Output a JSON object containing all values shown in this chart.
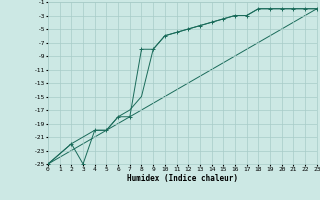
{
  "xlabel": "Humidex (Indice chaleur)",
  "bg_color": "#cce8e4",
  "grid_color": "#a8ccc8",
  "line_color": "#1a6b5a",
  "xlim": [
    0,
    23
  ],
  "ylim": [
    -25,
    -1
  ],
  "xticks": [
    0,
    1,
    2,
    3,
    4,
    5,
    6,
    7,
    8,
    9,
    10,
    11,
    12,
    13,
    14,
    15,
    16,
    17,
    18,
    19,
    20,
    21,
    22,
    23
  ],
  "yticks": [
    -25,
    -23,
    -21,
    -19,
    -17,
    -15,
    -13,
    -11,
    -9,
    -7,
    -5,
    -3,
    -1
  ],
  "line1_x": [
    0,
    2,
    3,
    4,
    5,
    6,
    7,
    8,
    9,
    10,
    11,
    12,
    13,
    14,
    15,
    16,
    17,
    18,
    19,
    20,
    21,
    22,
    23
  ],
  "line1_y": [
    -25,
    -22,
    -25,
    -20,
    -20,
    -18,
    -18,
    -8,
    -8,
    -6,
    -5.5,
    -5,
    -4.5,
    -4,
    -3.5,
    -3,
    -3,
    -2,
    -2,
    -2,
    -2,
    -2,
    -2
  ],
  "line2_x": [
    0,
    2,
    3,
    4,
    5,
    6,
    7,
    8,
    9,
    10,
    11,
    12,
    13,
    14,
    15,
    16,
    17,
    18,
    19,
    20,
    21,
    22,
    23
  ],
  "line2_y": [
    -25,
    -22,
    -21,
    -20,
    -20,
    -18,
    -17,
    -15,
    -8,
    -6,
    -5.5,
    -5,
    -4.5,
    -4,
    -3.5,
    -3,
    -3,
    -2,
    -2,
    -2,
    -2,
    -2,
    -2
  ],
  "line3_x": [
    0,
    23
  ],
  "line3_y": [
    -25,
    -2
  ]
}
